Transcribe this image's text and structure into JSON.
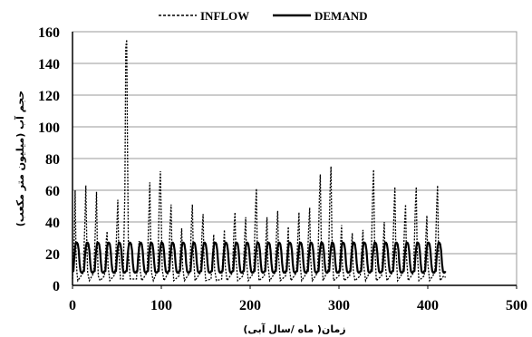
{
  "chart_data": {
    "type": "line",
    "title": "",
    "xlabel": "زمان( ماه /سال آبی)",
    "ylabel": "حجم آب (میلیون متر مکعب)",
    "xlim": [
      0,
      500
    ],
    "ylim": [
      0,
      160
    ],
    "x_ticks": [
      "0",
      "100",
      "200",
      "300",
      "400",
      "500"
    ],
    "y_ticks": [
      "0",
      "20",
      "40",
      "60",
      "80",
      "100",
      "120",
      "140",
      "160"
    ],
    "grid": "horizontal",
    "legend_position": "top",
    "series": [
      {
        "name": "INFLOW",
        "style": "dashed",
        "color": "#000000",
        "points": [
          [
            0,
            4
          ],
          [
            2,
            30
          ],
          [
            3,
            60
          ],
          [
            4,
            20
          ],
          [
            5,
            8
          ],
          [
            6,
            3
          ],
          [
            12,
            8
          ],
          [
            14,
            40
          ],
          [
            15,
            63
          ],
          [
            16,
            30
          ],
          [
            17,
            8
          ],
          [
            19,
            3
          ],
          [
            24,
            8
          ],
          [
            26,
            40
          ],
          [
            27,
            59
          ],
          [
            28,
            25
          ],
          [
            29,
            6
          ],
          [
            31,
            3
          ],
          [
            36,
            6
          ],
          [
            38,
            28
          ],
          [
            39,
            34
          ],
          [
            40,
            12
          ],
          [
            42,
            3
          ],
          [
            48,
            7
          ],
          [
            50,
            38
          ],
          [
            51,
            54
          ],
          [
            52,
            22
          ],
          [
            54,
            4
          ],
          [
            57,
            4
          ],
          [
            59,
            60
          ],
          [
            60,
            150
          ],
          [
            61,
            155
          ],
          [
            62,
            80
          ],
          [
            63,
            20
          ],
          [
            65,
            4
          ],
          [
            72,
            4
          ],
          [
            74,
            20
          ],
          [
            75,
            28
          ],
          [
            76,
            10
          ],
          [
            78,
            3
          ],
          [
            84,
            8
          ],
          [
            86,
            45
          ],
          [
            87,
            65
          ],
          [
            88,
            30
          ],
          [
            89,
            8
          ],
          [
            91,
            3
          ],
          [
            96,
            10
          ],
          [
            98,
            60
          ],
          [
            99,
            72
          ],
          [
            100,
            40
          ],
          [
            101,
            10
          ],
          [
            103,
            3
          ],
          [
            108,
            8
          ],
          [
            110,
            40
          ],
          [
            111,
            51
          ],
          [
            112,
            20
          ],
          [
            114,
            3
          ],
          [
            120,
            6
          ],
          [
            122,
            28
          ],
          [
            123,
            36
          ],
          [
            124,
            12
          ],
          [
            126,
            3
          ],
          [
            132,
            8
          ],
          [
            134,
            40
          ],
          [
            135,
            51
          ],
          [
            136,
            20
          ],
          [
            138,
            3
          ],
          [
            144,
            8
          ],
          [
            146,
            35
          ],
          [
            147,
            45
          ],
          [
            148,
            18
          ],
          [
            150,
            3
          ],
          [
            156,
            4
          ],
          [
            158,
            22
          ],
          [
            159,
            32
          ],
          [
            160,
            10
          ],
          [
            162,
            3
          ],
          [
            168,
            4
          ],
          [
            170,
            24
          ],
          [
            171,
            35
          ],
          [
            172,
            12
          ],
          [
            174,
            3
          ],
          [
            180,
            8
          ],
          [
            182,
            38
          ],
          [
            183,
            46
          ],
          [
            184,
            18
          ],
          [
            186,
            3
          ],
          [
            192,
            6
          ],
          [
            194,
            32
          ],
          [
            195,
            43
          ],
          [
            196,
            14
          ],
          [
            198,
            3
          ],
          [
            204,
            8
          ],
          [
            206,
            48
          ],
          [
            207,
            61
          ],
          [
            208,
            25
          ],
          [
            210,
            3
          ],
          [
            216,
            6
          ],
          [
            218,
            30
          ],
          [
            219,
            43
          ],
          [
            220,
            14
          ],
          [
            222,
            3
          ],
          [
            228,
            8
          ],
          [
            230,
            36
          ],
          [
            231,
            47
          ],
          [
            232,
            18
          ],
          [
            234,
            3
          ],
          [
            240,
            6
          ],
          [
            242,
            26
          ],
          [
            243,
            37
          ],
          [
            244,
            12
          ],
          [
            246,
            3
          ],
          [
            252,
            8
          ],
          [
            254,
            34
          ],
          [
            255,
            46
          ],
          [
            256,
            16
          ],
          [
            258,
            3
          ],
          [
            264,
            8
          ],
          [
            266,
            38
          ],
          [
            267,
            49
          ],
          [
            268,
            18
          ],
          [
            270,
            3
          ],
          [
            276,
            8
          ],
          [
            278,
            55
          ],
          [
            279,
            70
          ],
          [
            280,
            30
          ],
          [
            282,
            3
          ],
          [
            288,
            10
          ],
          [
            290,
            60
          ],
          [
            291,
            75
          ],
          [
            292,
            32
          ],
          [
            294,
            3
          ],
          [
            300,
            6
          ],
          [
            302,
            28
          ],
          [
            303,
            38
          ],
          [
            304,
            12
          ],
          [
            306,
            3
          ],
          [
            312,
            6
          ],
          [
            314,
            24
          ],
          [
            315,
            33
          ],
          [
            316,
            10
          ],
          [
            318,
            3
          ],
          [
            324,
            6
          ],
          [
            326,
            26
          ],
          [
            327,
            35
          ],
          [
            328,
            12
          ],
          [
            330,
            3
          ],
          [
            336,
            10
          ],
          [
            338,
            58
          ],
          [
            339,
            73
          ],
          [
            340,
            30
          ],
          [
            342,
            3
          ],
          [
            348,
            6
          ],
          [
            350,
            28
          ],
          [
            351,
            40
          ],
          [
            352,
            14
          ],
          [
            354,
            3
          ],
          [
            360,
            8
          ],
          [
            362,
            48
          ],
          [
            363,
            62
          ],
          [
            364,
            25
          ],
          [
            366,
            3
          ],
          [
            372,
            8
          ],
          [
            374,
            40
          ],
          [
            375,
            51
          ],
          [
            376,
            18
          ],
          [
            378,
            3
          ],
          [
            384,
            8
          ],
          [
            386,
            50
          ],
          [
            387,
            62
          ],
          [
            388,
            24
          ],
          [
            390,
            3
          ],
          [
            396,
            6
          ],
          [
            398,
            32
          ],
          [
            399,
            44
          ],
          [
            400,
            14
          ],
          [
            402,
            3
          ],
          [
            408,
            8
          ],
          [
            410,
            50
          ],
          [
            411,
            63
          ],
          [
            412,
            24
          ],
          [
            414,
            3
          ],
          [
            418,
            6
          ],
          [
            420,
            5
          ]
        ]
      },
      {
        "name": "DEMAND",
        "style": "solid",
        "color": "#000000",
        "period": 12,
        "start": 0,
        "end": 420,
        "pattern": [
          9,
          9,
          18,
          24,
          27,
          27,
          26,
          22,
          14,
          9,
          8,
          8
        ]
      }
    ]
  }
}
